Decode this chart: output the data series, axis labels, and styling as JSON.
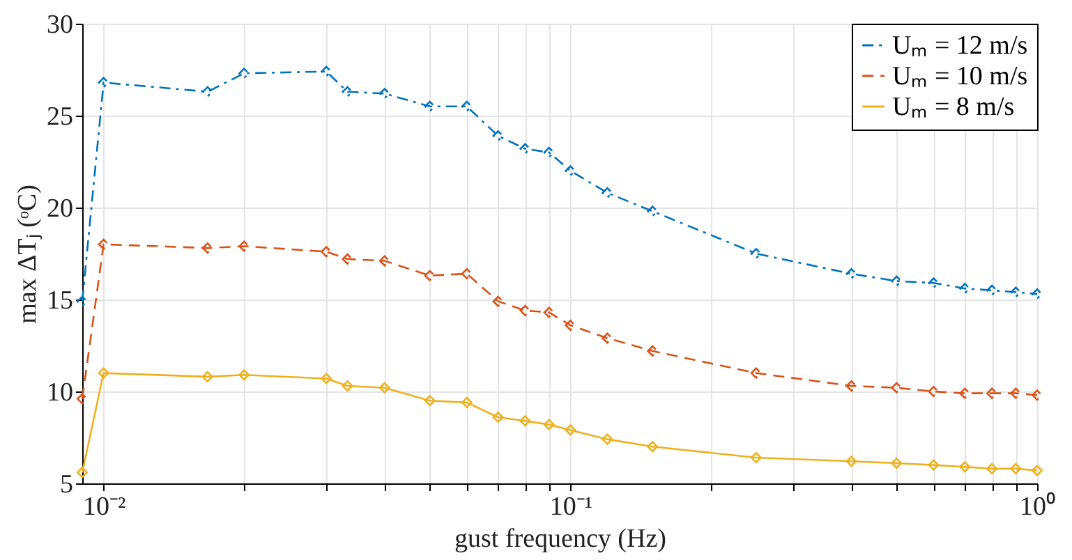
{
  "chart_data": {
    "type": "line",
    "xlabel": "gust frequency (Hz)",
    "ylabel": "max ΔTⱼ (ᵒC)",
    "x": [
      0.009,
      0.01,
      0.0167,
      0.02,
      0.03,
      0.0333,
      0.04,
      0.05,
      0.06,
      0.07,
      0.08,
      0.09,
      0.1,
      0.12,
      0.15,
      0.25,
      0.4,
      0.5,
      0.6,
      0.7,
      0.8,
      0.9,
      1.0
    ],
    "series": [
      {
        "name": "Uₘ = 12 m/s",
        "color": "#0072bd",
        "line_style": "dashdot",
        "values": [
          14.9,
          26.8,
          26.3,
          27.3,
          27.4,
          26.3,
          26.2,
          25.5,
          25.5,
          23.9,
          23.2,
          23.0,
          22.0,
          20.8,
          19.8,
          17.5,
          16.4,
          16.0,
          15.9,
          15.6,
          15.5,
          15.4,
          15.3
        ]
      },
      {
        "name": "Uₘ = 10 m/s",
        "color": "#d95319",
        "line_style": "dashed",
        "values": [
          9.6,
          18.0,
          17.8,
          17.9,
          17.6,
          17.2,
          17.1,
          16.3,
          16.4,
          14.9,
          14.4,
          14.3,
          13.6,
          12.9,
          12.2,
          11.0,
          10.3,
          10.2,
          10.0,
          9.9,
          9.9,
          9.9,
          9.8
        ]
      },
      {
        "name": "Uₘ = 8 m/s",
        "color": "#edb120",
        "line_style": "solid",
        "values": [
          5.6,
          11.0,
          10.8,
          10.9,
          10.7,
          10.3,
          10.2,
          9.5,
          9.4,
          8.6,
          8.4,
          8.2,
          7.9,
          7.4,
          7.0,
          6.4,
          6.2,
          6.1,
          6.0,
          5.9,
          5.8,
          5.8,
          5.7
        ]
      }
    ],
    "log": "x",
    "xlim": [
      0.009,
      1
    ],
    "xticks": [
      {
        "value": 0.01,
        "label": "10⁻²"
      },
      {
        "value": 0.02,
        "label": null
      },
      {
        "value": 0.03,
        "label": null
      },
      {
        "value": 0.04,
        "label": null
      },
      {
        "value": 0.05,
        "label": null
      },
      {
        "value": 0.06,
        "label": null
      },
      {
        "value": 0.07,
        "label": null
      },
      {
        "value": 0.08,
        "label": null
      },
      {
        "value": 0.09,
        "label": null
      },
      {
        "value": 0.1,
        "label": "10⁻¹"
      },
      {
        "value": 0.2,
        "label": null
      },
      {
        "value": 0.3,
        "label": null
      },
      {
        "value": 0.4,
        "label": null
      },
      {
        "value": 0.5,
        "label": null
      },
      {
        "value": 0.6,
        "label": null
      },
      {
        "value": 0.7,
        "label": null
      },
      {
        "value": 0.8,
        "label": null
      },
      {
        "value": 0.9,
        "label": null
      },
      {
        "value": 1,
        "label": "10⁰"
      }
    ],
    "ylim": [
      5,
      30
    ],
    "yticks": [
      5,
      10,
      15,
      20,
      25,
      30
    ],
    "grid": true,
    "legend": "top right",
    "marker": "diamond"
  }
}
